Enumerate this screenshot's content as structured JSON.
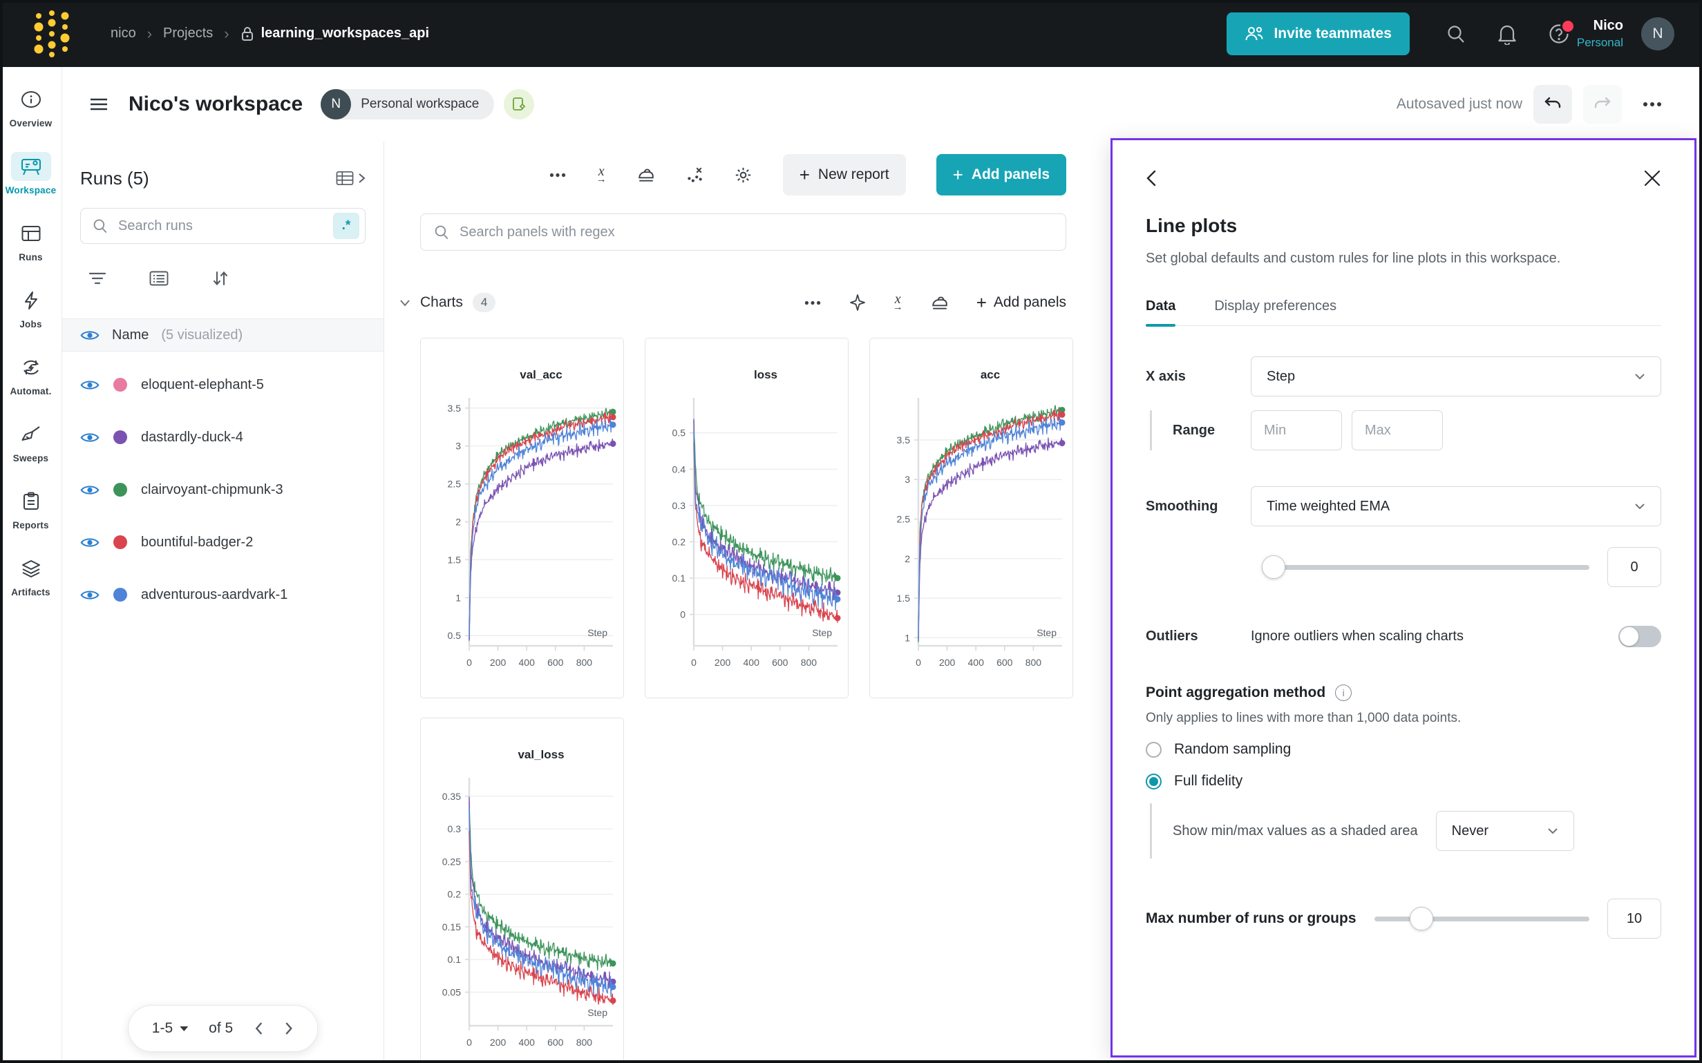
{
  "topnav": {
    "breadcrumb": {
      "entity": "nico",
      "section": "Projects",
      "project": "learning_workspaces_api"
    },
    "invite_label": "Invite teammates",
    "user_name": "Nico",
    "user_scope": "Personal",
    "avatar_initial": "N",
    "icons": [
      "wandb-logo",
      "search-icon",
      "bell-icon",
      "help-icon"
    ]
  },
  "header": {
    "title": "Nico's workspace",
    "badge_initial": "N",
    "badge_label": "Personal workspace",
    "autosave_status": "Autosaved just now"
  },
  "sidebar": {
    "items": [
      {
        "label": "Overview",
        "icon": "info-icon",
        "active": false
      },
      {
        "label": "Workspace",
        "icon": "workspace-icon",
        "active": true
      },
      {
        "label": "Runs",
        "icon": "table-icon",
        "active": false
      },
      {
        "label": "Jobs",
        "icon": "lightning-icon",
        "active": false
      },
      {
        "label": "Automat.",
        "icon": "automations-icon",
        "active": false
      },
      {
        "label": "Sweeps",
        "icon": "broom-icon",
        "active": false
      },
      {
        "label": "Reports",
        "icon": "clipboard-icon",
        "active": false
      },
      {
        "label": "Artifacts",
        "icon": "layers-icon",
        "active": false
      }
    ]
  },
  "runs_panel": {
    "title": "Runs (5)",
    "search_placeholder": "Search runs",
    "regex_label": ".*",
    "header_name": "Name",
    "header_sub": "(5 visualized)",
    "runs": [
      {
        "name": "eloquent-elephant-5",
        "color": "#E87BA0"
      },
      {
        "name": "dastardly-duck-4",
        "color": "#7A52B2"
      },
      {
        "name": "clairvoyant-chipmunk-3",
        "color": "#3D945B"
      },
      {
        "name": "bountiful-badger-2",
        "color": "#D9444E"
      },
      {
        "name": "adventurous-aardvark-1",
        "color": "#4F83D8"
      }
    ],
    "pagination": {
      "range": "1-5",
      "of": "of 5"
    }
  },
  "charts_toolbar": {
    "icons": [
      "overflow-menu",
      "x-axis",
      "panel-smoothing",
      "point-aggregation",
      "workspace-settings"
    ],
    "new_report_label": "New report",
    "add_panels_label": "Add panels",
    "panels_search_placeholder": "Search panels with regex"
  },
  "charts_section": {
    "title": "Charts",
    "count": "4",
    "icons": [
      "overflow-menu",
      "quick-add-sparkle",
      "x-axis",
      "panel-smoothing"
    ],
    "add_panels_label": "Add panels"
  },
  "accent_colors": {
    "teal": "#17A5B6",
    "panel_border_purple": "#7333E8",
    "active_nav_teal": "#0097AB"
  },
  "chart_data": [
    {
      "type": "line",
      "title": "val_acc",
      "xlabel": "Step",
      "xmax": 1000,
      "ylim": [
        0.42,
        3.58
      ],
      "yticks": [
        [
          0.5,
          "0.5"
        ],
        [
          1,
          "1"
        ],
        [
          1.5,
          "1.5"
        ],
        [
          2,
          "2"
        ],
        [
          2.5,
          "2.5"
        ],
        [
          3,
          "3"
        ],
        [
          3.5,
          "3.5"
        ]
      ],
      "xticks": [
        [
          0,
          "0"
        ],
        [
          200,
          "200"
        ],
        [
          400,
          "400"
        ],
        [
          600,
          "600"
        ],
        [
          800,
          "800"
        ]
      ],
      "x_samples": [
        0,
        10,
        25,
        50,
        100,
        200,
        300,
        400,
        500,
        600,
        700,
        800,
        900,
        1000
      ],
      "series": [
        {
          "name": "clairvoyant-chipmunk-3",
          "color": "#3D945B",
          "noise": 0.09,
          "values": [
            0.5,
            1.55,
            2.0,
            2.35,
            2.62,
            2.88,
            3.02,
            3.12,
            3.2,
            3.27,
            3.32,
            3.37,
            3.41,
            3.45
          ]
        },
        {
          "name": "bountiful-badger-2",
          "color": "#D9444E",
          "noise": 0.09,
          "values": [
            0.5,
            1.5,
            1.95,
            2.3,
            2.57,
            2.83,
            2.97,
            3.07,
            3.15,
            3.21,
            3.27,
            3.31,
            3.35,
            3.38
          ]
        },
        {
          "name": "dastardly-duck-4",
          "color": "#7A52B2",
          "noise": 0.1,
          "values": [
            0.45,
            1.3,
            1.65,
            1.95,
            2.2,
            2.45,
            2.6,
            2.72,
            2.8,
            2.87,
            2.92,
            2.97,
            3.0,
            3.03
          ]
        },
        {
          "name": "adventurous-aardvark-1",
          "color": "#4F83D8",
          "noise": 0.12,
          "values": [
            0.48,
            1.45,
            1.85,
            2.2,
            2.45,
            2.7,
            2.85,
            2.95,
            3.04,
            3.1,
            3.16,
            3.21,
            3.25,
            3.28
          ]
        }
      ]
    },
    {
      "type": "line",
      "title": "loss",
      "xlabel": "Step",
      "xmax": 1000,
      "ylim": [
        -0.075,
        0.585
      ],
      "yticks": [
        [
          0,
          "0"
        ],
        [
          0.1,
          "0.1"
        ],
        [
          0.2,
          "0.2"
        ],
        [
          0.3,
          "0.3"
        ],
        [
          0.4,
          "0.4"
        ],
        [
          0.5,
          "0.5"
        ]
      ],
      "xticks": [
        [
          0,
          "0"
        ],
        [
          200,
          "200"
        ],
        [
          400,
          "400"
        ],
        [
          600,
          "600"
        ],
        [
          800,
          "800"
        ]
      ],
      "x_samples": [
        0,
        10,
        25,
        50,
        100,
        200,
        300,
        400,
        500,
        600,
        700,
        800,
        900,
        1000
      ],
      "series": [
        {
          "name": "clairvoyant-chipmunk-3",
          "color": "#3D945B",
          "noise": 0.032,
          "values": [
            0.55,
            0.4,
            0.34,
            0.3,
            0.26,
            0.215,
            0.19,
            0.17,
            0.155,
            0.14,
            0.13,
            0.12,
            0.11,
            0.1
          ]
        },
        {
          "name": "dastardly-duck-4",
          "color": "#7A52B2",
          "noise": 0.03,
          "values": [
            0.52,
            0.36,
            0.3,
            0.26,
            0.22,
            0.18,
            0.155,
            0.135,
            0.12,
            0.105,
            0.09,
            0.08,
            0.07,
            0.06
          ]
        },
        {
          "name": "bountiful-badger-2",
          "color": "#D9444E",
          "noise": 0.032,
          "values": [
            0.48,
            0.3,
            0.245,
            0.205,
            0.165,
            0.125,
            0.1,
            0.08,
            0.062,
            0.048,
            0.033,
            0.02,
            0.005,
            -0.01
          ]
        },
        {
          "name": "adventurous-aardvark-1",
          "color": "#4F83D8",
          "noise": 0.04,
          "values": [
            0.5,
            0.34,
            0.285,
            0.245,
            0.205,
            0.165,
            0.14,
            0.12,
            0.105,
            0.09,
            0.075,
            0.065,
            0.052,
            0.042
          ]
        }
      ]
    },
    {
      "type": "line",
      "title": "acc",
      "xlabel": "Step",
      "xmax": 1000,
      "ylim": [
        0.95,
        3.98
      ],
      "yticks": [
        [
          1,
          "1"
        ],
        [
          1.5,
          "1.5"
        ],
        [
          2,
          "2"
        ],
        [
          2.5,
          "2.5"
        ],
        [
          3,
          "3"
        ],
        [
          3.5,
          "3.5"
        ]
      ],
      "xticks": [
        [
          0,
          "0"
        ],
        [
          200,
          "200"
        ],
        [
          400,
          "400"
        ],
        [
          600,
          "600"
        ],
        [
          800,
          "800"
        ]
      ],
      "x_samples": [
        0,
        10,
        25,
        50,
        100,
        200,
        300,
        400,
        500,
        600,
        700,
        800,
        900,
        1000
      ],
      "series": [
        {
          "name": "clairvoyant-chipmunk-3",
          "color": "#3D945B",
          "noise": 0.1,
          "values": [
            1.0,
            2.3,
            2.7,
            2.95,
            3.15,
            3.35,
            3.47,
            3.56,
            3.63,
            3.7,
            3.75,
            3.8,
            3.84,
            3.88
          ]
        },
        {
          "name": "bountiful-badger-2",
          "color": "#D9444E",
          "noise": 0.09,
          "values": [
            1.0,
            2.25,
            2.65,
            2.9,
            3.1,
            3.3,
            3.42,
            3.51,
            3.58,
            3.64,
            3.7,
            3.75,
            3.79,
            3.82
          ]
        },
        {
          "name": "dastardly-duck-4",
          "color": "#7A52B2",
          "noise": 0.1,
          "values": [
            1.0,
            1.9,
            2.3,
            2.55,
            2.75,
            2.95,
            3.07,
            3.16,
            3.24,
            3.3,
            3.36,
            3.4,
            3.44,
            3.46
          ]
        },
        {
          "name": "adventurous-aardvark-1",
          "color": "#4F83D8",
          "noise": 0.12,
          "values": [
            1.0,
            2.15,
            2.55,
            2.8,
            3.0,
            3.2,
            3.32,
            3.41,
            3.48,
            3.54,
            3.6,
            3.65,
            3.69,
            3.72
          ]
        }
      ]
    },
    {
      "type": "line",
      "title": "val_loss",
      "xlabel": "Step",
      "xmax": 1000,
      "ylim": [
        0.005,
        0.372
      ],
      "yticks": [
        [
          0.05,
          "0.05"
        ],
        [
          0.1,
          "0.1"
        ],
        [
          0.15,
          "0.15"
        ],
        [
          0.2,
          "0.2"
        ],
        [
          0.25,
          "0.25"
        ],
        [
          0.3,
          "0.3"
        ],
        [
          0.35,
          "0.35"
        ]
      ],
      "xticks": [
        [
          0,
          "0"
        ],
        [
          200,
          "200"
        ],
        [
          400,
          "400"
        ],
        [
          600,
          "600"
        ],
        [
          800,
          "800"
        ]
      ],
      "x_samples": [
        0,
        10,
        25,
        50,
        100,
        200,
        300,
        400,
        500,
        600,
        700,
        800,
        900,
        1000
      ],
      "series": [
        {
          "name": "clairvoyant-chipmunk-3",
          "color": "#3D945B",
          "noise": 0.016,
          "values": [
            0.35,
            0.26,
            0.225,
            0.2,
            0.175,
            0.152,
            0.138,
            0.128,
            0.12,
            0.113,
            0.107,
            0.102,
            0.098,
            0.094
          ]
        },
        {
          "name": "dastardly-duck-4",
          "color": "#7A52B2",
          "noise": 0.015,
          "values": [
            0.34,
            0.24,
            0.205,
            0.18,
            0.155,
            0.132,
            0.118,
            0.107,
            0.098,
            0.09,
            0.083,
            0.077,
            0.071,
            0.066
          ]
        },
        {
          "name": "bountiful-badger-2",
          "color": "#D9444E",
          "noise": 0.016,
          "values": [
            0.3,
            0.2,
            0.17,
            0.146,
            0.124,
            0.104,
            0.091,
            0.08,
            0.071,
            0.063,
            0.056,
            0.049,
            0.043,
            0.037
          ]
        },
        {
          "name": "adventurous-aardvark-1",
          "color": "#4F83D8",
          "noise": 0.02,
          "values": [
            0.33,
            0.23,
            0.195,
            0.17,
            0.146,
            0.124,
            0.11,
            0.099,
            0.09,
            0.082,
            0.075,
            0.069,
            0.063,
            0.058
          ]
        }
      ]
    }
  ],
  "settings_panel": {
    "title": "Line plots",
    "description": "Set global defaults and custom rules for line plots in this workspace.",
    "tabs": [
      {
        "label": "Data",
        "active": true
      },
      {
        "label": "Display preferences",
        "active": false
      }
    ],
    "x_axis_label": "X axis",
    "x_axis_value": "Step",
    "range_label": "Range",
    "min_placeholder": "Min",
    "max_placeholder": "Max",
    "smoothing_label": "Smoothing",
    "smoothing_value": "Time weighted EMA",
    "smoothing_amount": "0",
    "outliers_label": "Outliers",
    "outliers_text": "Ignore outliers when scaling charts",
    "outliers_enabled": false,
    "aggregation_title": "Point aggregation method",
    "aggregation_note": "Only applies to lines with more than 1,000 data points.",
    "radio_options": [
      {
        "label": "Random sampling",
        "selected": false
      },
      {
        "label": "Full fidelity",
        "selected": true
      }
    ],
    "minmax_label": "Show min/max values as a shaded area",
    "minmax_value": "Never",
    "max_runs_label": "Max number of runs or groups",
    "max_runs_value": "10"
  }
}
